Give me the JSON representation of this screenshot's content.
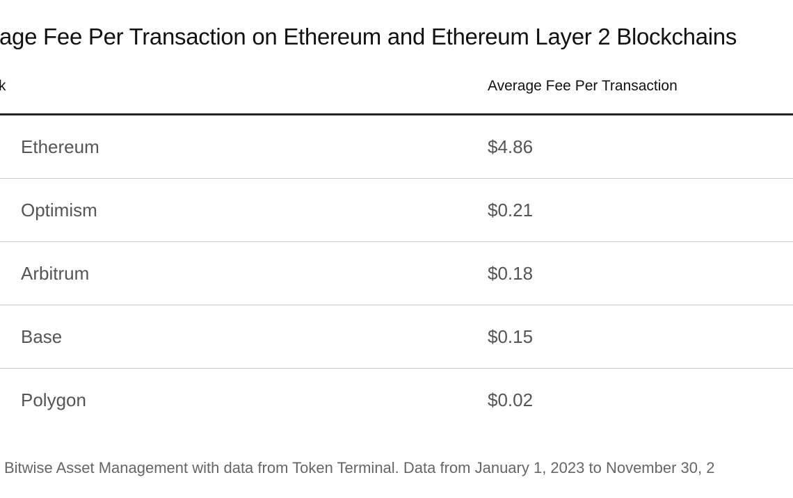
{
  "header": {
    "title": "age Fee Per Transaction on Ethereum and Ethereum Layer 2 Blockchains"
  },
  "table": {
    "columns": [
      "k",
      "Average Fee Per Transaction"
    ],
    "rows": [
      [
        "Ethereum",
        "$4.86"
      ],
      [
        "Optimism",
        "$0.21"
      ],
      [
        "Arbitrum",
        "$0.18"
      ],
      [
        "Base",
        "$0.15"
      ],
      [
        "Polygon",
        "$0.02"
      ]
    ]
  },
  "footer": {
    "note": "Bitwise Asset Management with data from Token Terminal. Data from January 1, 2023 to November 30, 2"
  }
}
